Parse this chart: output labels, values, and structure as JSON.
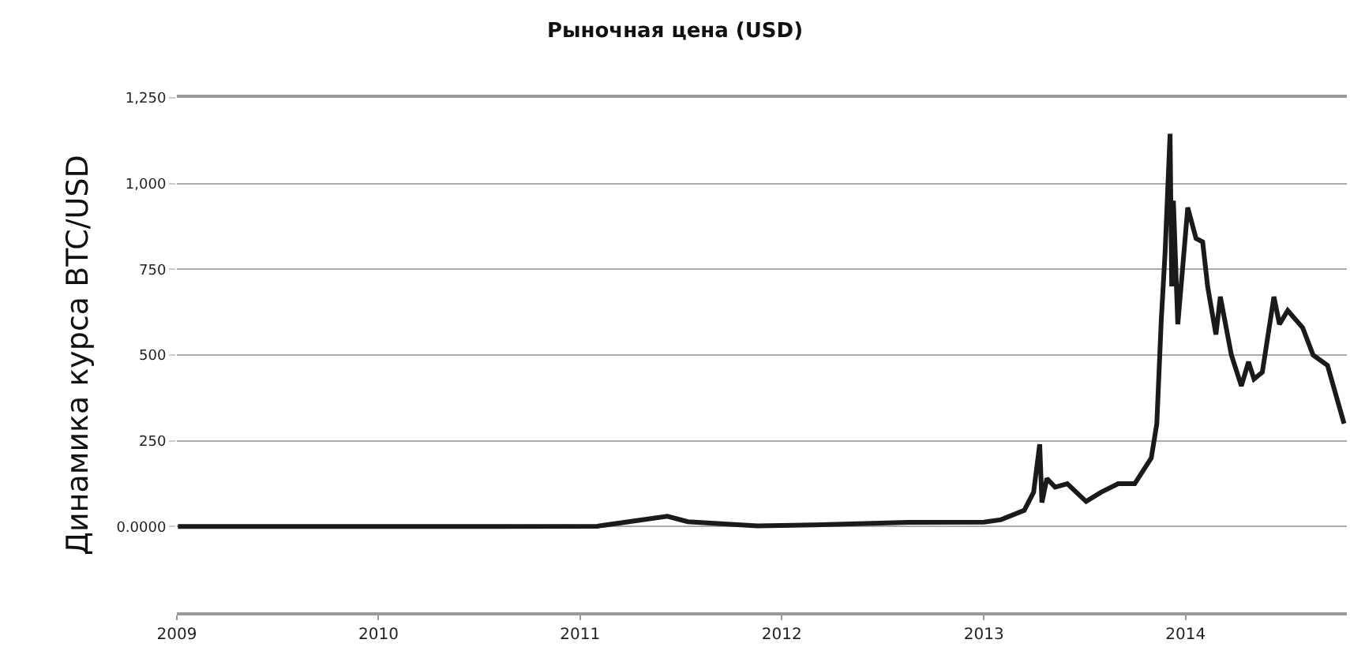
{
  "chart_data": {
    "type": "line",
    "title": "Рыночная цена (USD)",
    "ylabel": "Динамика курса BTC/USD",
    "x": [
      "2009-01-03",
      "2010-07-17",
      "2011-02-01",
      "2011-06-08",
      "2011-07-15",
      "2011-11-18",
      "2012-03-01",
      "2012-08-17",
      "2013-01-01",
      "2013-02-01",
      "2013-03-15",
      "2013-04-01",
      "2013-04-12",
      "2013-04-16",
      "2013-04-25",
      "2013-05-10",
      "2013-06-01",
      "2013-07-05",
      "2013-08-01",
      "2013-09-01",
      "2013-10-01",
      "2013-10-31",
      "2013-11-10",
      "2013-11-18",
      "2013-11-25",
      "2013-12-04",
      "2013-12-07",
      "2013-12-10",
      "2013-12-18",
      "2013-12-26",
      "2014-01-05",
      "2014-01-20",
      "2014-02-01",
      "2014-02-10",
      "2014-02-25",
      "2014-03-05",
      "2014-03-25",
      "2014-04-12",
      "2014-04-25",
      "2014-05-05",
      "2014-05-20",
      "2014-06-10",
      "2014-06-20",
      "2014-07-05",
      "2014-08-01",
      "2014-08-20",
      "2014-09-15",
      "2014-10-15"
    ],
    "series": [
      {
        "color": "#1a1a1a",
        "values": [
          0,
          0,
          1,
          30,
          14,
          2,
          5,
          12,
          13,
          20,
          47,
          100,
          240,
          70,
          140,
          115,
          125,
          73,
          100,
          125,
          125,
          200,
          300,
          600,
          800,
          1145,
          700,
          950,
          590,
          740,
          930,
          840,
          830,
          700,
          560,
          670,
          500,
          410,
          480,
          430,
          450,
          670,
          590,
          630,
          580,
          500,
          470,
          300
        ]
      }
    ],
    "xlim": [
      "2009-01-01",
      "2014-10-20"
    ],
    "xticks": [
      {
        "value": "2009-01-01",
        "label": "2009"
      },
      {
        "value": "2010-01-01",
        "label": "2010"
      },
      {
        "value": "2011-01-01",
        "label": "2011"
      },
      {
        "value": "2012-01-01",
        "label": "2012"
      },
      {
        "value": "2013-01-01",
        "label": "2013"
      },
      {
        "value": "2014-01-01",
        "label": "2014"
      }
    ],
    "ylim": [
      -250,
      1250
    ],
    "yticks": [
      {
        "value": 0,
        "label": "0.0000"
      },
      {
        "value": 250,
        "label": "250"
      },
      {
        "value": 500,
        "label": "500"
      },
      {
        "value": 750,
        "label": "750"
      },
      {
        "value": 1000,
        "label": "1,000"
      },
      {
        "value": 1250,
        "label": "1,250"
      }
    ],
    "grid": "y",
    "line_style": "solid",
    "marker": "none"
  }
}
